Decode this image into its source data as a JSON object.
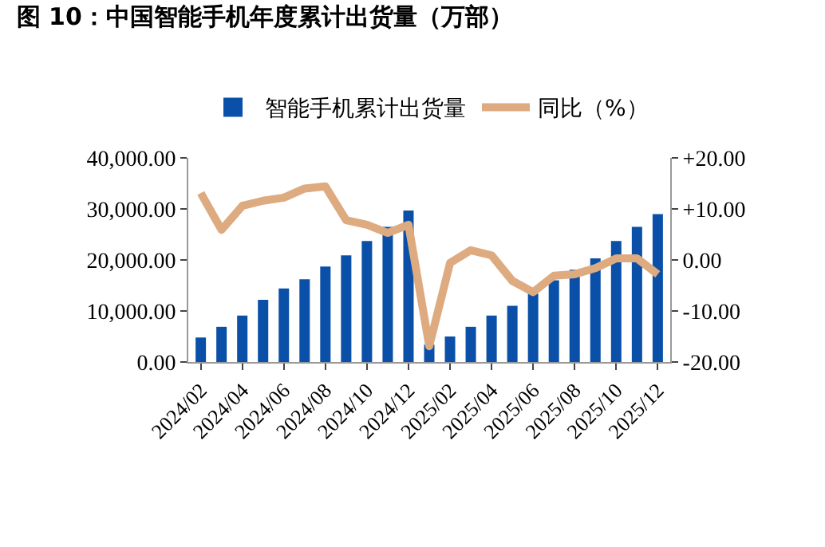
{
  "chart_data": {
    "type": "bar",
    "title": "图 10：中国智能手机年度累计出货量（万部）",
    "categories": [
      "2024/02",
      null,
      "2024/04",
      null,
      "2024/06",
      null,
      "2024/08",
      null,
      "2024/10",
      null,
      "2024/12",
      null,
      "2025/02",
      null,
      "2025/04",
      null,
      "2025/06",
      null,
      "2025/08",
      null,
      "2025/10",
      null,
      "2025/12"
    ],
    "series": [
      {
        "name": "智能手机累计出货量",
        "color": "#0a50a8",
        "values": [
          4800,
          6900,
          9100,
          12200,
          14400,
          16200,
          18700,
          20900,
          23700,
          26500,
          29700,
          3400,
          5000,
          6900,
          9100,
          11000,
          13400,
          16000,
          18100,
          20300,
          23700,
          26500,
          29000
        ]
      },
      {
        "name": "同比（%）",
        "type": "line",
        "axis": "y2",
        "color": "#deaa80",
        "line_style": "solid",
        "values": [
          13.1,
          5.9,
          10.6,
          11.6,
          12.2,
          14.0,
          14.4,
          7.8,
          6.9,
          5.3,
          6.9,
          -16.9,
          -0.6,
          1.9,
          0.9,
          -4.1,
          -6.3,
          -3.1,
          -2.8,
          -1.6,
          0.3,
          0.3,
          -2.8
        ]
      }
    ],
    "ylim": [
      0,
      40000
    ],
    "yticks": [
      {
        "value": 0,
        "label": "0.00"
      },
      {
        "value": 10000,
        "label": "10,000.00"
      },
      {
        "value": 20000,
        "label": "20,000.00"
      },
      {
        "value": 30000,
        "label": "30,000.00"
      },
      {
        "value": 40000,
        "label": "40,000.00"
      }
    ],
    "y2lim": [
      -20,
      20
    ],
    "y2ticks": [
      {
        "value": -20,
        "label": "-20.00"
      },
      {
        "value": -10,
        "label": "-10.00"
      },
      {
        "value": 0,
        "label": "0.00"
      },
      {
        "value": 10,
        "label": "+10.00"
      },
      {
        "value": 20,
        "label": "+20.00"
      }
    ],
    "legend": "top",
    "grid": false,
    "marker": "none"
  }
}
